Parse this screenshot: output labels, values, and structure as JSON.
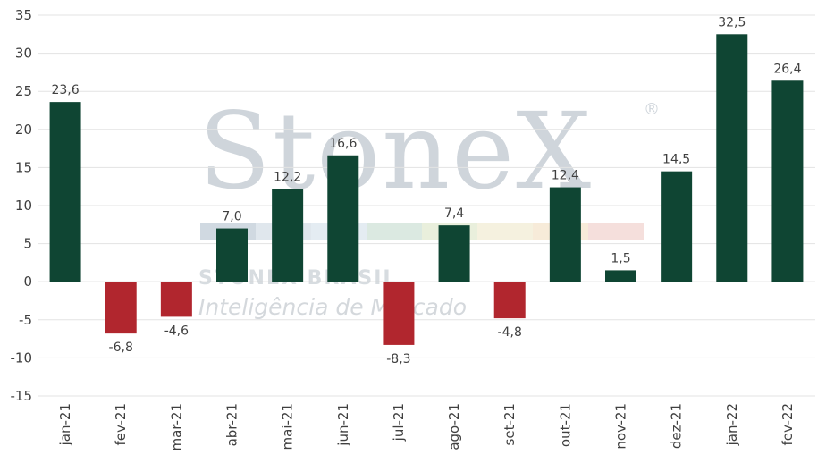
{
  "watermark": {
    "logo": "StoneX",
    "registered": "®",
    "company": "STONEX BRASIL",
    "tagline": "Inteligência de Mercado",
    "stripe_colors": [
      "#c8d2dc",
      "#dbe3ea",
      "#dfe9f0",
      "#d5e5dc",
      "#e5ecd6",
      "#f3efd9",
      "#f6e7d2",
      "#f3d9d6"
    ]
  },
  "chart_data": {
    "type": "bar",
    "categories": [
      "jan-21",
      "fev-21",
      "mar-21",
      "abr-21",
      "mai-21",
      "jun-21",
      "jul-21",
      "ago-21",
      "set-21",
      "out-21",
      "nov-21",
      "dez-21",
      "jan-22",
      "fev-22"
    ],
    "values": [
      23.6,
      -6.8,
      -4.6,
      7.0,
      12.2,
      16.6,
      -8.3,
      7.4,
      -4.8,
      12.4,
      1.5,
      14.5,
      32.5,
      26.4
    ],
    "data_labels": [
      "23,6",
      "-6,8",
      "-4,6",
      "7,0",
      "12,2",
      "16,6",
      "-8,3",
      "7,4",
      "-4,8",
      "12,4",
      "1,5",
      "14,5",
      "32,5",
      "26,4"
    ],
    "yticks": [
      35,
      30,
      25,
      20,
      15,
      10,
      5,
      0,
      -5,
      -10,
      -15
    ],
    "ytick_labels": [
      "35",
      "30",
      "25",
      "20",
      "15",
      "10",
      "5",
      "0",
      "-5",
      "-10",
      "-15"
    ],
    "ylim": [
      -15,
      35
    ],
    "grid": true,
    "title": "",
    "xlabel": "",
    "ylabel": "",
    "colors": {
      "positive": "#0f4533",
      "negative": "#b1262e",
      "grid": "#e3e3e3",
      "zero_line": "#d0d0d0"
    }
  }
}
